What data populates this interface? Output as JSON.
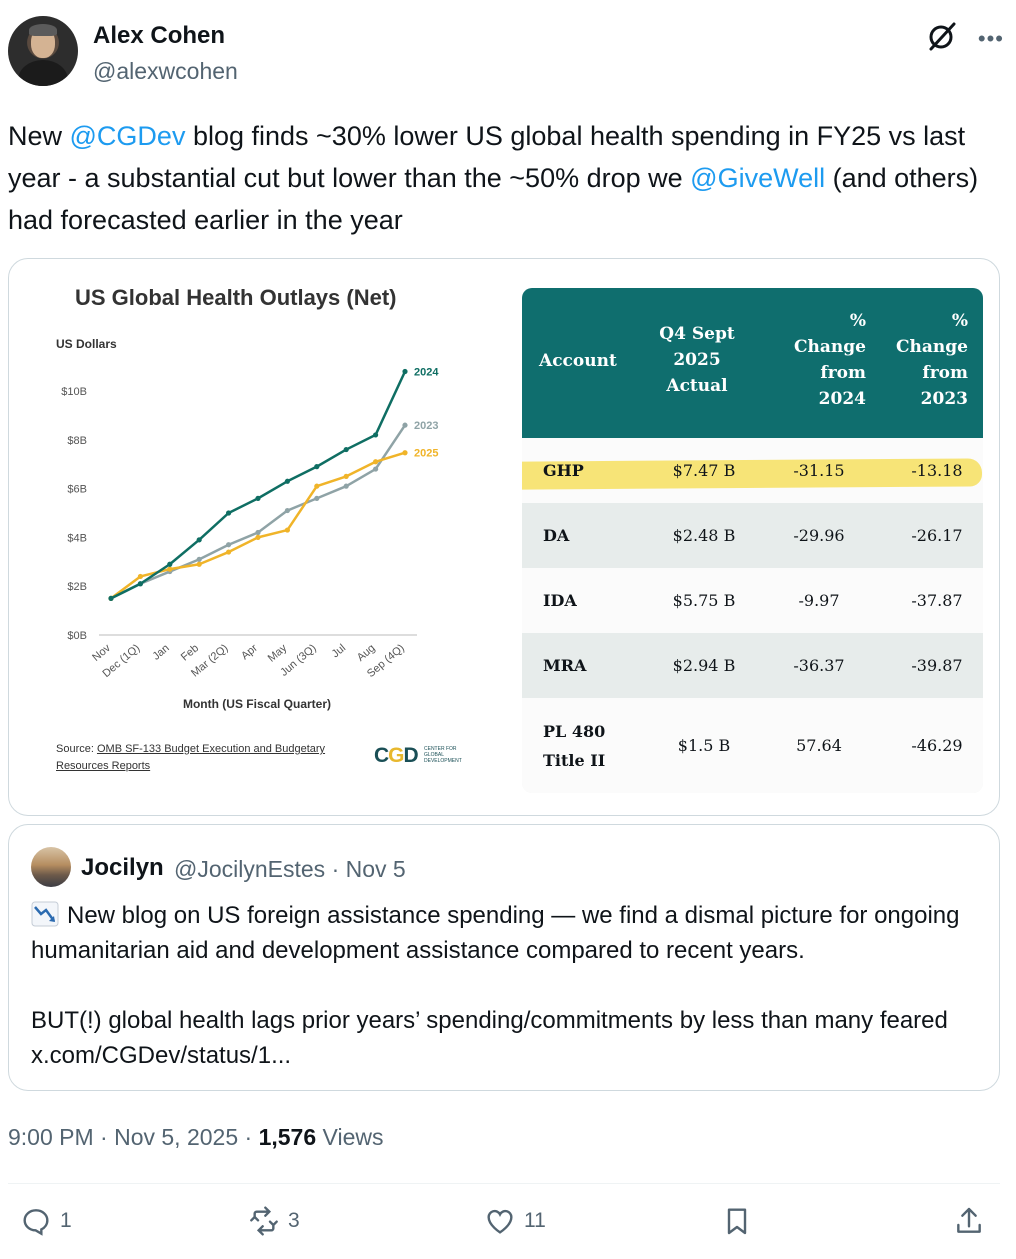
{
  "author": {
    "name": "Alex Cohen",
    "handle": "@alexwcohen"
  },
  "tweet": {
    "p1": "New ",
    "m1": "@CGDev",
    "p2": " blog finds ~30% lower US global health spending in FY25 vs last year  - a substantial cut but lower than the ~50% drop we ",
    "m2": "@GiveWell",
    "p3": " (and others) had forecasted earlier in the year"
  },
  "chart_data": {
    "type": "line",
    "title": "US Global Health Outlays (Net)",
    "ylabel": "US Dollars",
    "xlabel": "Month (US Fiscal Quarter)",
    "ylim": [
      0,
      11
    ],
    "yticks": [
      "$0B",
      "$2B",
      "$4B",
      "$6B",
      "$8B",
      "$10B"
    ],
    "categories": [
      "Nov",
      "Dec (1Q)",
      "Jan",
      "Feb",
      "Mar (2Q)",
      "Apr",
      "May",
      "Jun (3Q)",
      "Jul",
      "Aug",
      "Sep (4Q)"
    ],
    "series": [
      {
        "name": "2024",
        "color": "#0f6e63",
        "values": [
          1.5,
          2.1,
          2.9,
          3.9,
          5.0,
          5.6,
          6.3,
          6.9,
          7.6,
          8.2,
          10.8
        ]
      },
      {
        "name": "2023",
        "color": "#8fa3a6",
        "values": [
          1.5,
          2.1,
          2.6,
          3.1,
          3.7,
          4.2,
          5.1,
          5.6,
          6.1,
          6.8,
          8.6
        ]
      },
      {
        "name": "2025",
        "color": "#f0b429",
        "values": [
          1.5,
          2.4,
          2.7,
          2.9,
          3.4,
          4.0,
          4.3,
          6.1,
          6.5,
          7.1,
          7.47
        ]
      }
    ],
    "grid": false,
    "legend": "inline-right"
  },
  "source": {
    "prefix": "Source: ",
    "link": "OMB SF-133 Budget Execution and Budgetary Resources Reports"
  },
  "logo": {
    "mark": "CGD",
    "text": "CENTER FOR GLOBAL DEVELOPMENT"
  },
  "table": {
    "headers": {
      "account": "Account",
      "actual": [
        "Q4 Sept",
        "2025",
        "Actual"
      ],
      "c2024": [
        "%",
        "Change",
        "from",
        "2024"
      ],
      "c2023": [
        "%",
        "Change",
        "from",
        "2023"
      ]
    },
    "rows": [
      {
        "account": "GHP",
        "actual": "$7.47 B",
        "c2024": "-31.15",
        "c2023": "-13.18"
      },
      {
        "account": "DA",
        "actual": "$2.48 B",
        "c2024": "-29.96",
        "c2023": "-26.17"
      },
      {
        "account": "IDA",
        "actual": "$5.75 B",
        "c2024": "-9.97",
        "c2023": "-37.87"
      },
      {
        "account": "MRA",
        "actual": "$2.94 B",
        "c2024": "-36.37",
        "c2023": "-39.87"
      },
      {
        "account_l1": "PL 480",
        "account_l2": "Title II",
        "actual": "$1.5 B",
        "c2024": "57.64",
        "c2023": "-46.29"
      }
    ]
  },
  "quote": {
    "name": "Jocilyn",
    "handle": "@JocilynEstes · Nov 5",
    "line1": "New blog on US foreign assistance spending — we find a dismal picture for ongoing humanitarian aid and development assistance compared to recent years.",
    "line2": "BUT(!) global health lags prior years’ spending/commitments by less than many feared x.com/CGDev/status/1..."
  },
  "meta": {
    "time": "9:00 PM · Nov 5, 2025 · ",
    "views": "1,576",
    "views_label": " Views"
  },
  "actions": {
    "replies": "1",
    "reposts": "3",
    "likes": "11"
  }
}
